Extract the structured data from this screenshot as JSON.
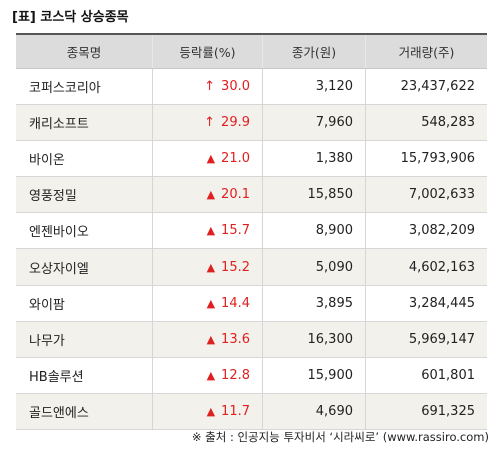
{
  "title": "[표] 코스닥 상승종목",
  "headers": [
    "종목명",
    "등락률(%)",
    "종가(원)",
    "거래량(주)"
  ],
  "rows": [
    {
      "name": "코퍼스코리아",
      "symbol": "↑",
      "rate": "30.0",
      "close": "3,120",
      "volume": "23,437,622"
    },
    {
      "name": "캐리소프트",
      "symbol": "↑",
      "rate": "29.9",
      "close": "7,960",
      "volume": "548,283"
    },
    {
      "name": "바이온",
      "symbol": "▲",
      "rate": "21.0",
      "close": "1,380",
      "volume": "15,793,906"
    },
    {
      "name": "영풍정밀",
      "symbol": "▲",
      "rate": "20.1",
      "close": "15,850",
      "volume": "7,002,633"
    },
    {
      "name": "엔젠바이오",
      "symbol": "▲",
      "rate": "15.7",
      "close": "8,900",
      "volume": "3,082,209"
    },
    {
      "name": "오상자이엘",
      "symbol": "▲",
      "rate": "15.2",
      "close": "5,090",
      "volume": "4,602,163"
    },
    {
      "name": "와이팜",
      "symbol": "▲",
      "rate": "14.4",
      "close": "3,895",
      "volume": "3,284,445"
    },
    {
      "name": "나무가",
      "symbol": "▲",
      "rate": "13.6",
      "close": "16,300",
      "volume": "5,969,147"
    },
    {
      "name": "HB솔루션",
      "symbol": "▲",
      "rate": "12.8",
      "close": "15,900",
      "volume": "601,801"
    },
    {
      "name": "골드앤에스",
      "symbol": "▲",
      "rate": "11.7",
      "close": "4,690",
      "volume": "691,325"
    }
  ],
  "source": "※ 출처 : 인공지능 투자비서 ‘시라씨로’ (www.rassiro.com)",
  "colors": {
    "up": "#e02020",
    "header_bg": "#dcdcdc",
    "alt_bg": "#f2f1ec"
  }
}
